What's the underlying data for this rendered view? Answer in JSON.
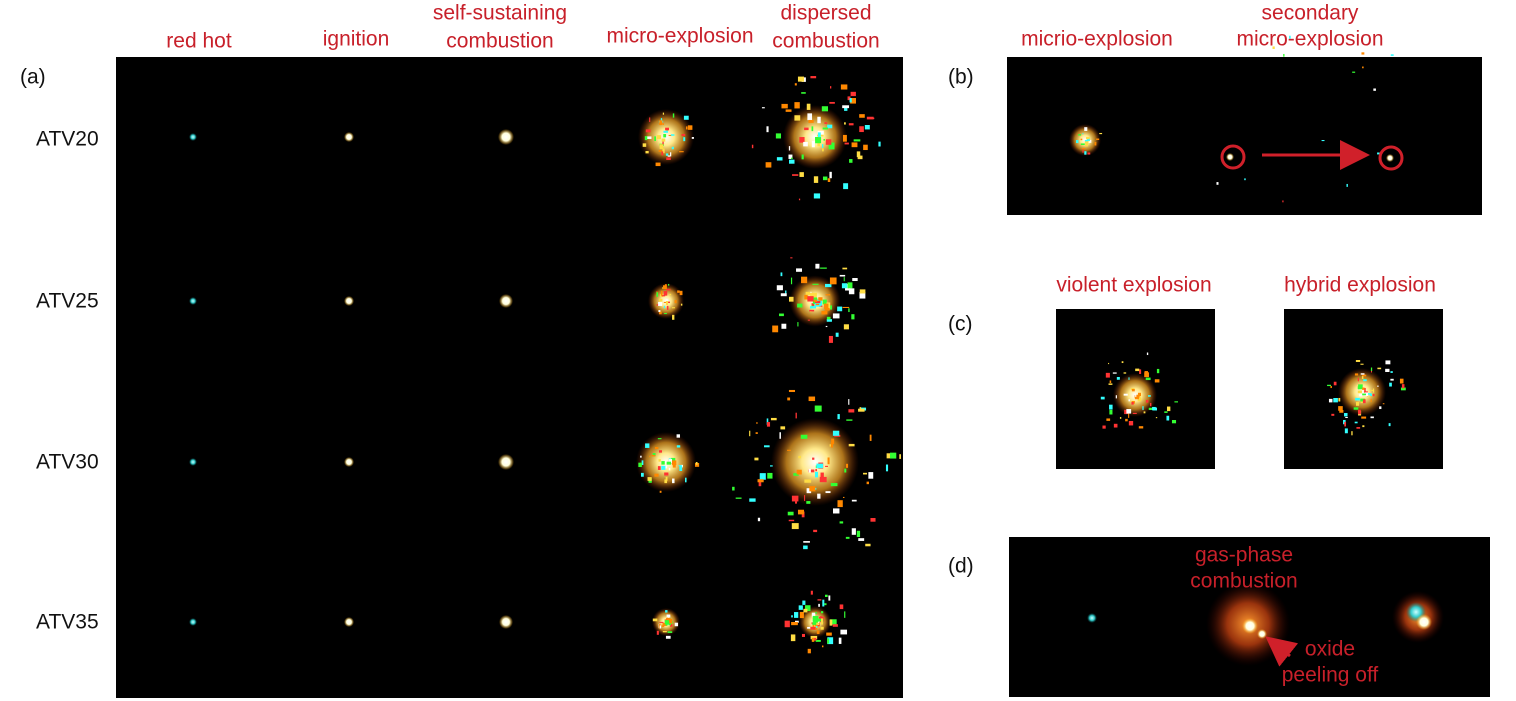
{
  "panel_a": {
    "label": "(a)",
    "columns": [
      [
        "red hot"
      ],
      [
        "ignition"
      ],
      [
        "self-sustaining",
        "combustion"
      ],
      [
        "micro-explosion"
      ],
      [
        "dispersed",
        "combustion"
      ]
    ],
    "rows": [
      "ATV20",
      "ATV25",
      "ATV30",
      "ATV35"
    ]
  },
  "panel_b": {
    "label": "(b)",
    "captions": [
      [
        "micrio-explosion"
      ],
      [
        "secondary",
        "micro-explosion"
      ]
    ]
  },
  "panel_c": {
    "label": "(c)",
    "captions": [
      "violent explosion",
      "hybrid explosion"
    ]
  },
  "panel_d": {
    "label": "(d)",
    "annotations": [
      [
        "gas-phase",
        "combustion"
      ],
      [
        "oxide",
        "peeling off"
      ]
    ]
  }
}
